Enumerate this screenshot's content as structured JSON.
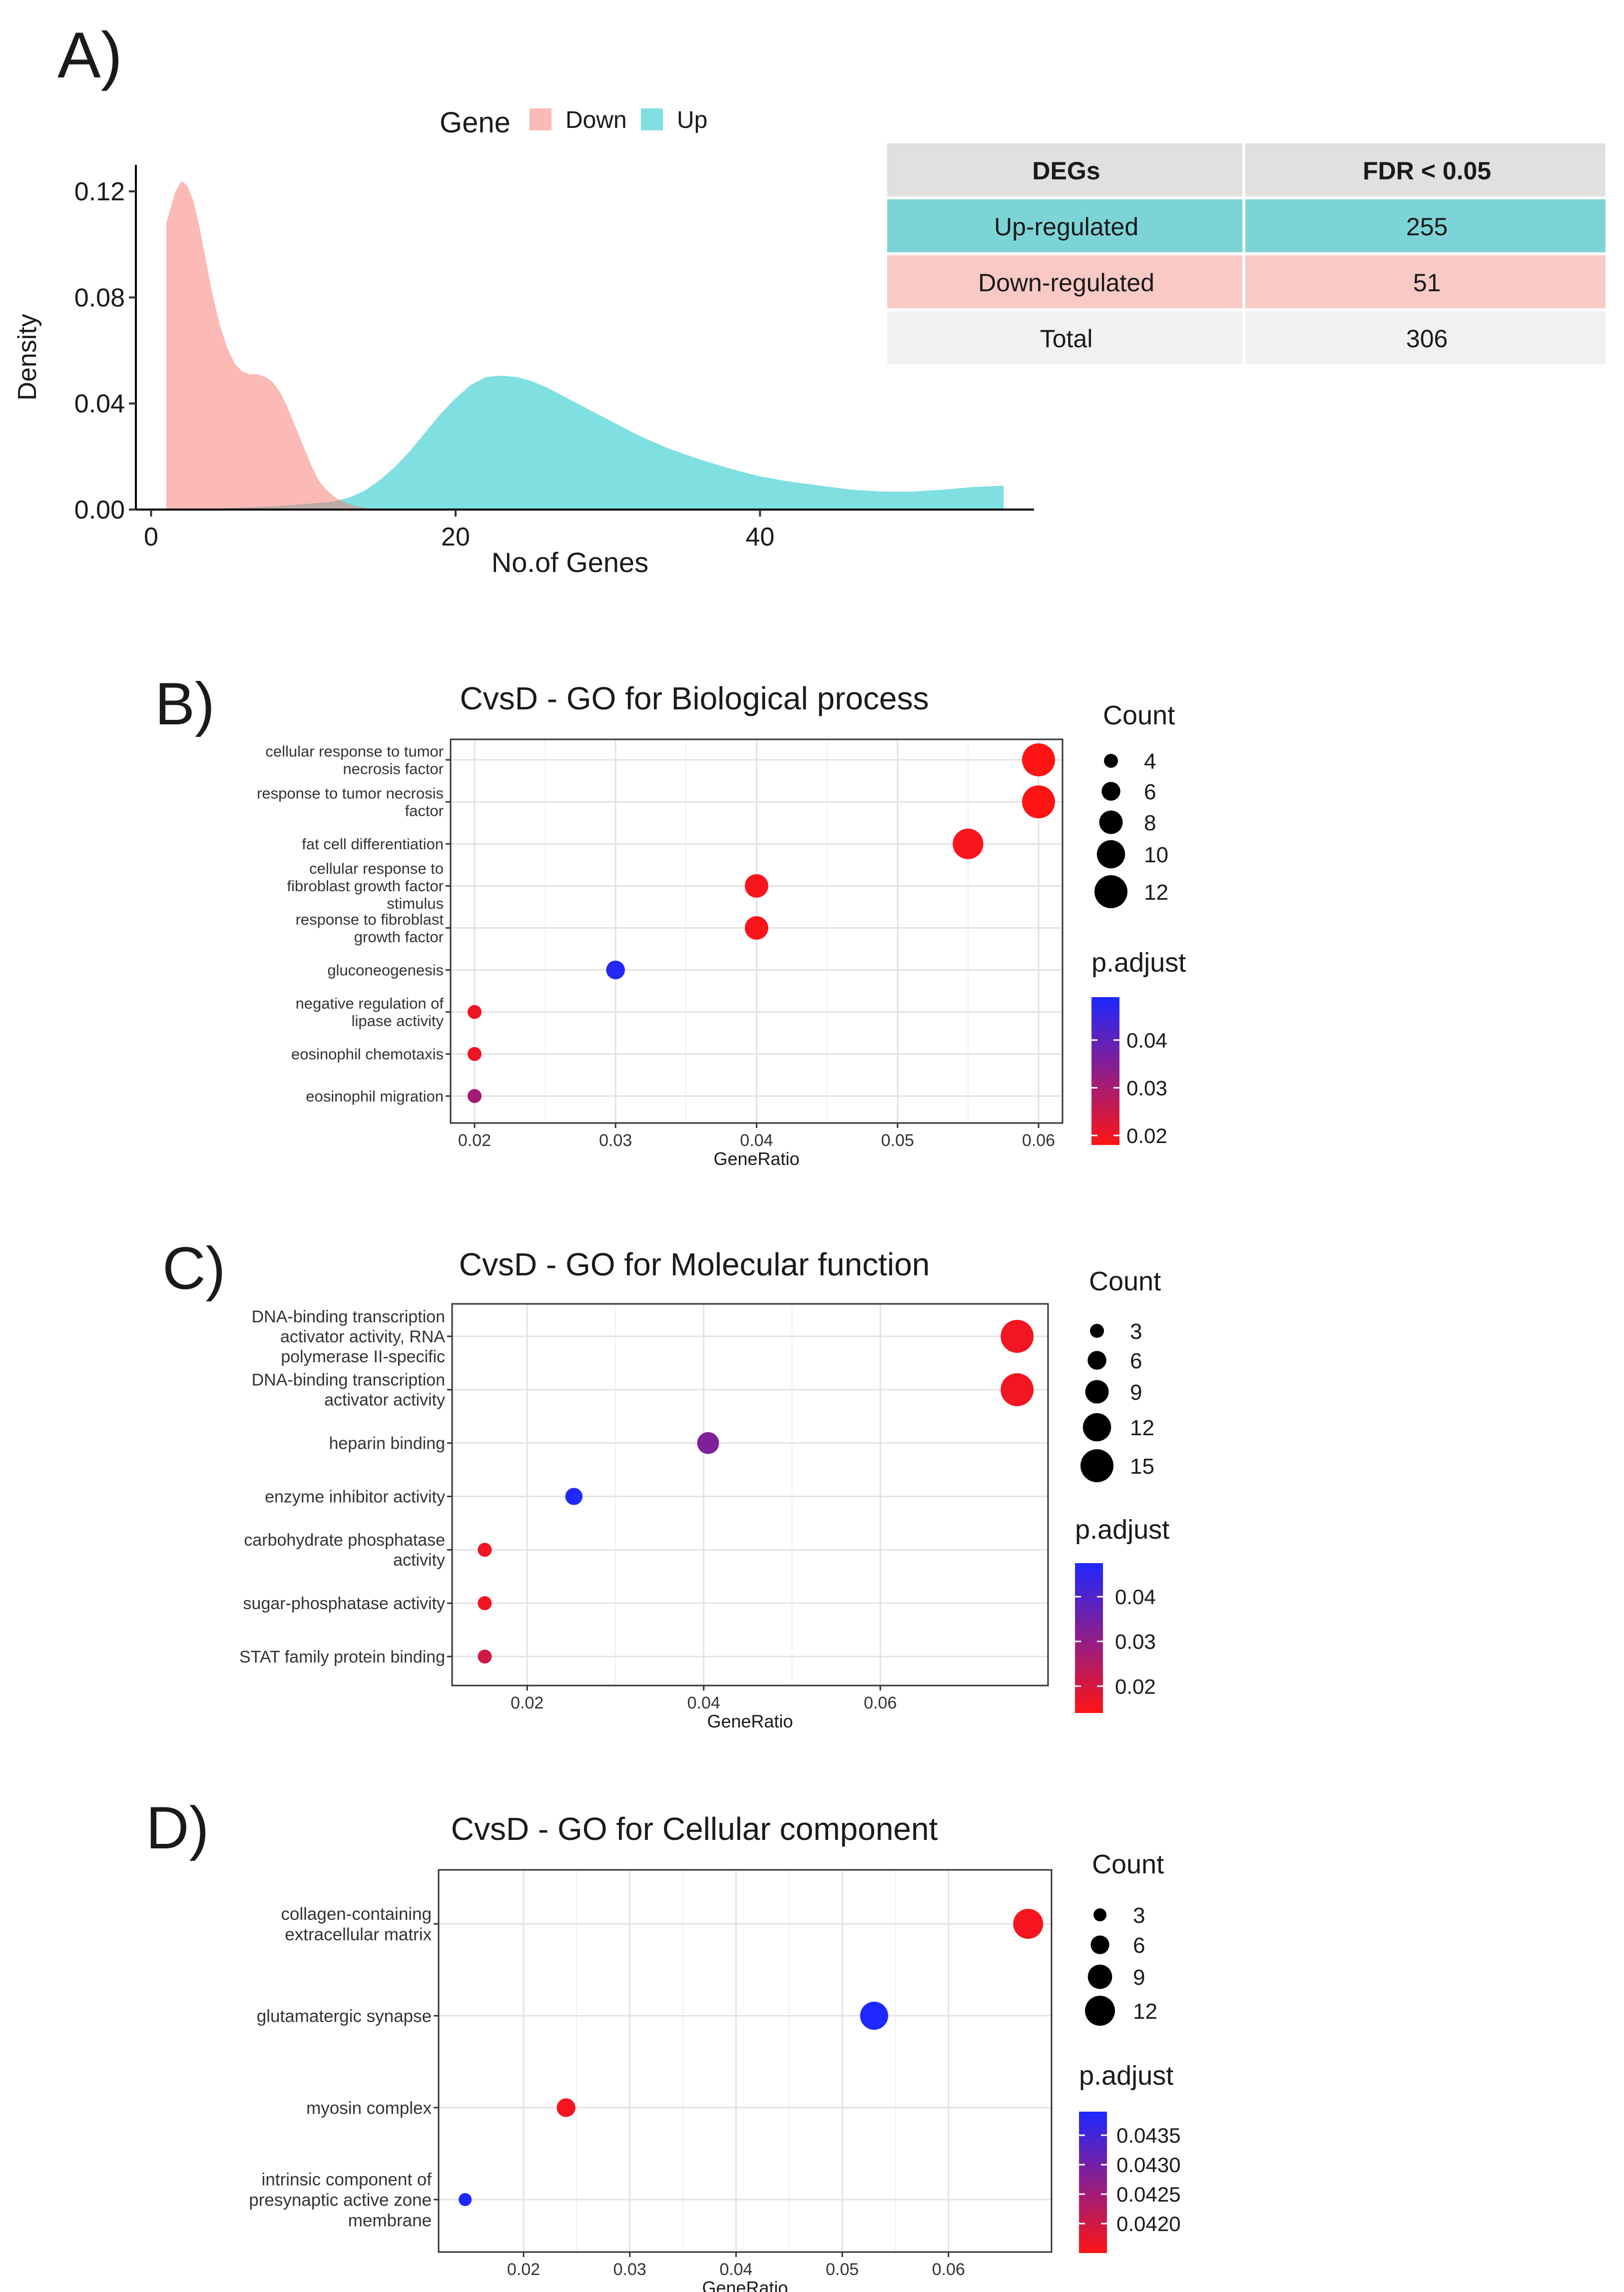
{
  "chart_data": [
    {
      "panel": "A)",
      "type": "area",
      "title": "",
      "xlabel": "No.of Genes",
      "ylabel": "Density",
      "xlim": [
        -1,
        58
      ],
      "ylim": [
        0,
        0.13
      ],
      "xticks": [
        0,
        20,
        40
      ],
      "yticks": [
        0.0,
        0.04,
        0.08,
        0.12
      ],
      "ytick_labels": [
        "0.00",
        "0.04",
        "0.08",
        "0.12"
      ],
      "legend": {
        "title": "Gene",
        "entries": [
          "Down",
          "Up"
        ]
      },
      "colors": {
        "Down": "#f8766d",
        "Up": "#00bfc4"
      },
      "series": [
        {
          "name": "Down",
          "x": [
            1,
            1.2,
            1.6,
            2,
            2.4,
            2.8,
            3.2,
            3.6,
            4,
            4.5,
            5,
            5.5,
            6,
            6.5,
            7,
            7.5,
            8,
            8.5,
            9,
            9.5,
            10,
            10.5,
            11,
            11.5,
            12,
            12.5,
            13,
            13.5,
            14,
            14.5,
            15,
            15.5,
            16
          ],
          "y": [
            0.108,
            0.112,
            0.12,
            0.124,
            0.122,
            0.116,
            0.106,
            0.094,
            0.082,
            0.07,
            0.061,
            0.055,
            0.052,
            0.051,
            0.051,
            0.05,
            0.048,
            0.044,
            0.038,
            0.031,
            0.024,
            0.017,
            0.011,
            0.0075,
            0.005,
            0.0032,
            0.002,
            0.0012,
            0.0007,
            0.0004,
            0.0002,
            0.0001,
            0.0
          ]
        },
        {
          "name": "Up",
          "x": [
            1,
            4,
            8,
            10,
            12,
            13,
            14,
            15,
            16,
            17,
            18,
            19,
            20,
            21,
            22,
            23,
            24,
            25,
            26,
            27,
            28,
            30,
            32,
            34,
            36,
            38,
            40,
            42,
            44,
            46,
            48,
            50,
            52,
            54,
            56
          ],
          "y": [
            0.0,
            0.0003,
            0.0012,
            0.002,
            0.003,
            0.0045,
            0.007,
            0.011,
            0.016,
            0.022,
            0.029,
            0.036,
            0.042,
            0.047,
            0.05,
            0.0505,
            0.05,
            0.0485,
            0.046,
            0.043,
            0.04,
            0.034,
            0.028,
            0.023,
            0.019,
            0.0155,
            0.0125,
            0.0105,
            0.009,
            0.0075,
            0.0068,
            0.0068,
            0.0075,
            0.0085,
            0.009
          ]
        }
      ],
      "table": {
        "headers": [
          "DEGs",
          "FDR < 0.05"
        ],
        "rows": [
          {
            "label": "Up-regulated",
            "value": "255",
            "color": "#7dd4d6"
          },
          {
            "label": "Down-regulated",
            "value": "51",
            "color": "#f8c9c5"
          },
          {
            "label": "Total",
            "value": "306",
            "color": "#f1f1f1"
          }
        ],
        "header_color": "#e0e0e0"
      }
    },
    {
      "panel": "B)",
      "type": "scatter",
      "title": "CvsD - GO for Biological process",
      "xlabel": "GeneRatio",
      "xlim": [
        0.0183,
        0.0617
      ],
      "xticks": [
        0.02,
        0.03,
        0.04,
        0.05,
        0.06
      ],
      "xtick_labels": [
        "0.02",
        "0.03",
        "0.04",
        "0.05",
        "0.06"
      ],
      "categories": [
        "cellular response to tumor\nnecrosis factor",
        "response to tumor necrosis\nfactor",
        "fat cell differentiation",
        "cellular response to\nfibroblast growth factor\nstimulus",
        "response to fibroblast\ngrowth factor",
        "gluconeogenesis",
        "negative regulation of\nlipase activity",
        "eosinophil chemotaxis",
        "eosinophil migration"
      ],
      "x": [
        0.06,
        0.06,
        0.055,
        0.04,
        0.04,
        0.03,
        0.02,
        0.02,
        0.02
      ],
      "count": [
        12,
        12,
        11,
        8,
        8,
        6,
        4,
        4,
        4
      ],
      "p_adjust": [
        0.018,
        0.018,
        0.019,
        0.019,
        0.019,
        0.048,
        0.02,
        0.02,
        0.031
      ],
      "size_legend": {
        "title": "Count",
        "values": [
          4,
          6,
          8,
          10,
          12
        ]
      },
      "color_legend": {
        "title": "p.adjust",
        "range": [
          0.018,
          0.049
        ],
        "ticks": [
          0.02,
          0.03,
          0.04
        ],
        "tick_labels": [
          "0.02",
          "0.03",
          "0.04"
        ]
      }
    },
    {
      "panel": "C)",
      "type": "scatter",
      "title": "CvsD - GO for Molecular function",
      "xlabel": "GeneRatio",
      "xlim": [
        0.0115,
        0.079
      ],
      "xticks": [
        0.02,
        0.04,
        0.06
      ],
      "xtick_labels": [
        "0.02",
        "0.04",
        "0.06"
      ],
      "categories": [
        "DNA-binding transcription\nactivator activity, RNA\npolymerase II-specific",
        "DNA-binding transcription\nactivator activity",
        "heparin binding",
        "enzyme inhibitor activity",
        "carbohydrate phosphatase\nactivity",
        "sugar-phosphatase activity",
        "STAT family protein binding"
      ],
      "x": [
        0.0755,
        0.0755,
        0.0405,
        0.0253,
        0.0152,
        0.0152,
        0.0152
      ],
      "count": [
        15,
        15,
        8,
        5,
        3,
        3,
        3
      ],
      "p_adjust": [
        0.016,
        0.016,
        0.033,
        0.047,
        0.016,
        0.016,
        0.021
      ],
      "size_legend": {
        "title": "Count",
        "values": [
          3,
          6,
          9,
          12,
          15
        ]
      },
      "color_legend": {
        "title": "p.adjust",
        "range": [
          0.014,
          0.0475
        ],
        "ticks": [
          0.02,
          0.03,
          0.04
        ],
        "tick_labels": [
          "0.02",
          "0.03",
          "0.04"
        ]
      }
    },
    {
      "panel": "D)",
      "type": "scatter",
      "title": "CvsD - GO for Cellular component",
      "xlabel": "GeneRatio",
      "xlim": [
        0.012,
        0.0697
      ],
      "xticks": [
        0.02,
        0.03,
        0.04,
        0.05,
        0.06
      ],
      "xtick_labels": [
        "0.02",
        "0.03",
        "0.04",
        "0.05",
        "0.06"
      ],
      "categories": [
        "collagen-containing\nextracellular matrix",
        "glutamatergic synapse",
        "myosin complex",
        "intrinsic component of\npresynaptic active zone\nmembrane"
      ],
      "x": [
        0.0675,
        0.053,
        0.024,
        0.0145
      ],
      "count": [
        12,
        11,
        6,
        3
      ],
      "p_adjust": [
        0.0416,
        0.0439,
        0.0416,
        0.0439
      ],
      "size_legend": {
        "title": "Count",
        "values": [
          3,
          6,
          9,
          12
        ]
      },
      "color_legend": {
        "title": "p.adjust",
        "range": [
          0.0415,
          0.0439
        ],
        "ticks": [
          0.042,
          0.0425,
          0.043,
          0.0435
        ],
        "tick_labels": [
          "0.0420",
          "0.0425",
          "0.0430",
          "0.0435"
        ]
      }
    }
  ]
}
